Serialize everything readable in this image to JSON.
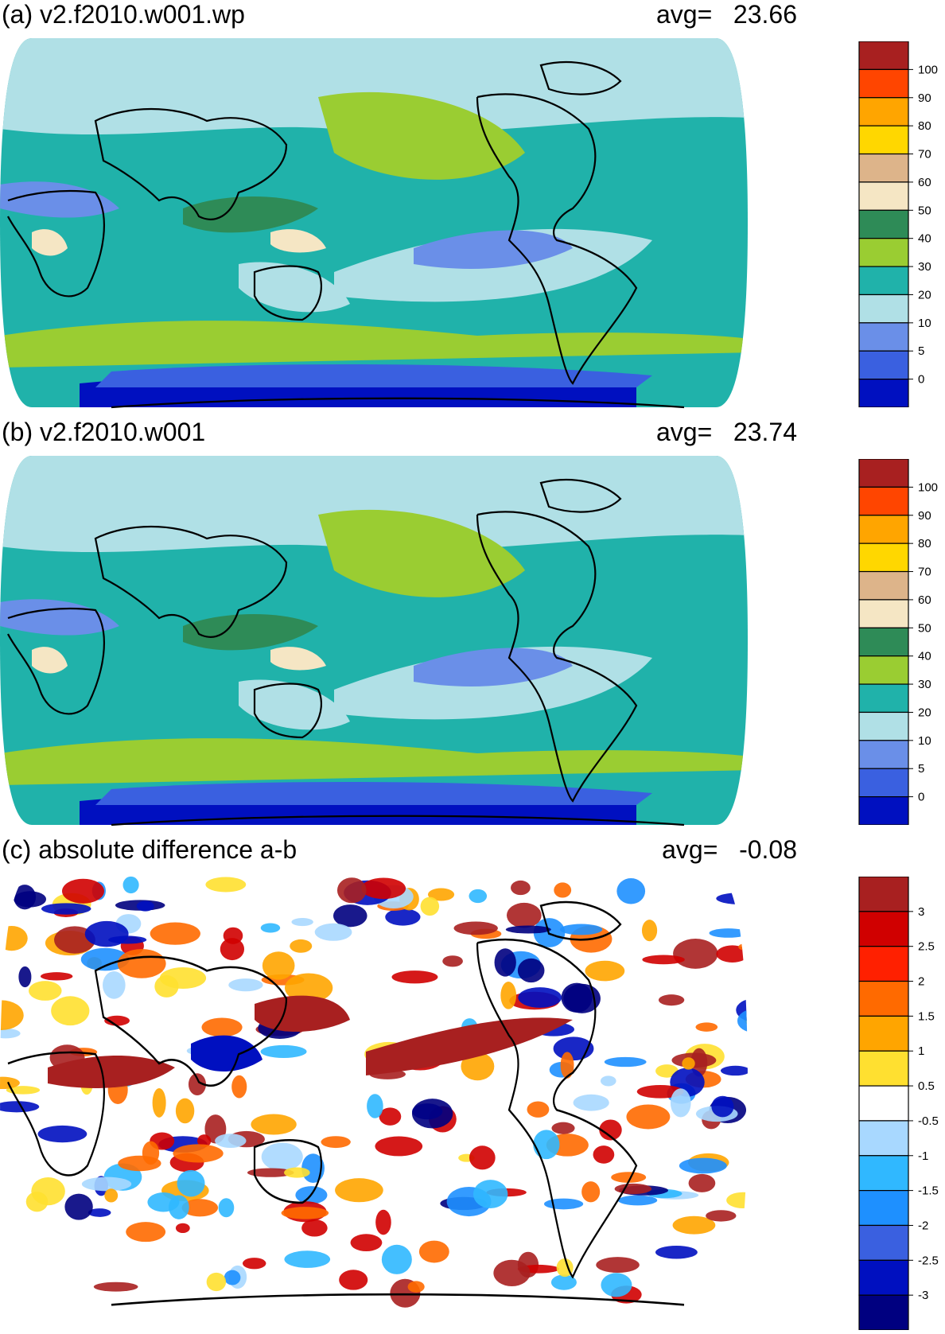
{
  "panels": [
    {
      "title": "(a) v2.f2010.w001.wp",
      "avg_label": "avg=",
      "avg_value": "23.66",
      "colorbar": {
        "labels": [
          "100",
          "90",
          "80",
          "70",
          "60",
          "50",
          "40",
          "30",
          "20",
          "10",
          "5",
          "0"
        ],
        "colors": [
          "#a82020",
          "#ff4500",
          "#ffa500",
          "#ffd700",
          "#ddb48a",
          "#f5e6c4",
          "#2e8b57",
          "#9acd32",
          "#20b2aa",
          "#b0e0e6",
          "#6a8fe8",
          "#3a60e0",
          "#0010c0"
        ]
      },
      "map_fill": [
        "#20b2aa",
        "#9acd32",
        "#b0e0e6",
        "#6a8fe8"
      ]
    },
    {
      "title": "(b) v2.f2010.w001",
      "avg_label": "avg=",
      "avg_value": "23.74",
      "colorbar": {
        "labels": [
          "100",
          "90",
          "80",
          "70",
          "60",
          "50",
          "40",
          "30",
          "20",
          "10",
          "5",
          "0"
        ],
        "colors": [
          "#a82020",
          "#ff4500",
          "#ffa500",
          "#ffd700",
          "#ddb48a",
          "#f5e6c4",
          "#2e8b57",
          "#9acd32",
          "#20b2aa",
          "#b0e0e6",
          "#6a8fe8",
          "#3a60e0",
          "#0010c0"
        ]
      },
      "map_fill": [
        "#20b2aa",
        "#9acd32",
        "#b0e0e6",
        "#6a8fe8"
      ]
    },
    {
      "title": "(c) absolute difference a-b",
      "avg_label": "avg=",
      "avg_value": "-0.08",
      "colorbar": {
        "labels": [
          "3",
          "2.5",
          "2",
          "1.5",
          "1",
          "0.5",
          "-0.5",
          "-1",
          "-1.5",
          "-2",
          "-2.5",
          "-3"
        ],
        "colors": [
          "#a82020",
          "#d00000",
          "#ff2000",
          "#ff6a00",
          "#ffa500",
          "#ffe030",
          "#ffffff",
          "#a8d8ff",
          "#30b8ff",
          "#1e90ff",
          "#3a60e0",
          "#0010c0",
          "#000080"
        ]
      },
      "map_fill": [
        "#ffffff",
        "#a8d8ff",
        "#ffe030",
        "#1e90ff"
      ]
    }
  ]
}
